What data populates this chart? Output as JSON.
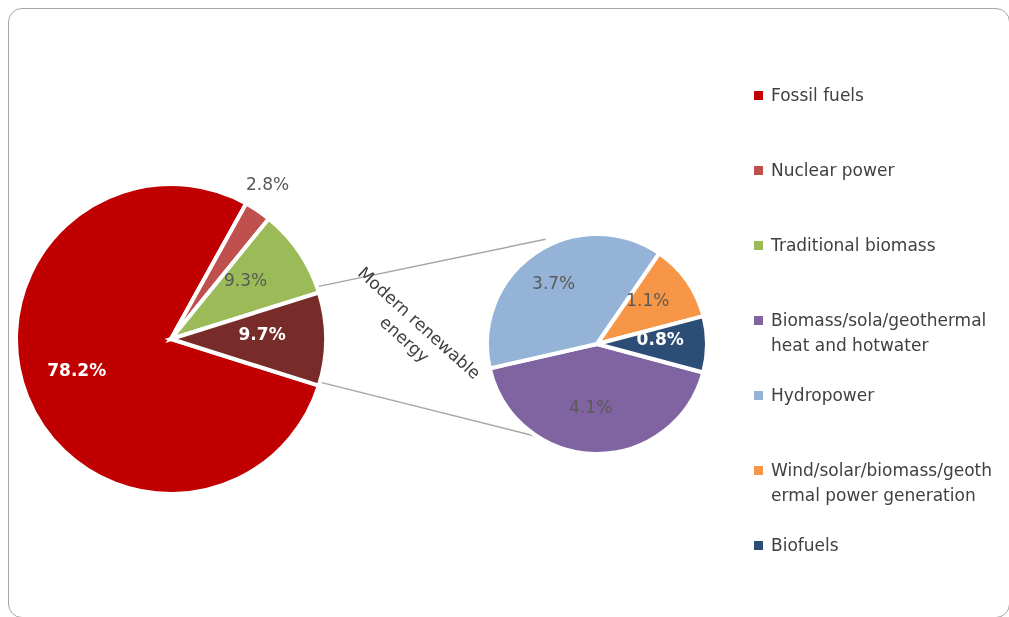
{
  "chart_data": [
    {
      "type": "pie",
      "categories": [
        "Fossil fuels",
        "Nuclear power",
        "Traditional biomass",
        null
      ],
      "values": [
        78.2,
        2.8,
        9.3,
        9.7
      ],
      "colors": [
        "#c00000",
        "#c0504d",
        "#9bbb59",
        "#772c2a"
      ],
      "value_labels": [
        "78.2%",
        "2.8%",
        "9.3%",
        "9.7%"
      ],
      "legend": "right",
      "annotations": [
        "Modern renewable energy"
      ]
    },
    {
      "type": "pie",
      "categories": [
        "Biomass/sola/geothermal heat and hotwater",
        "Hydropower",
        "Wind/solar/biomass/geothermal power generation",
        "Biofuels"
      ],
      "values": [
        4.1,
        3.7,
        1.1,
        0.8
      ],
      "colors": [
        "#8064a2",
        "#95b3d7",
        "#f79646",
        "#2c4d75"
      ],
      "value_labels": [
        "4.1%",
        "3.7%",
        "1.1%",
        "0.8%"
      ],
      "legend": "right"
    }
  ]
}
